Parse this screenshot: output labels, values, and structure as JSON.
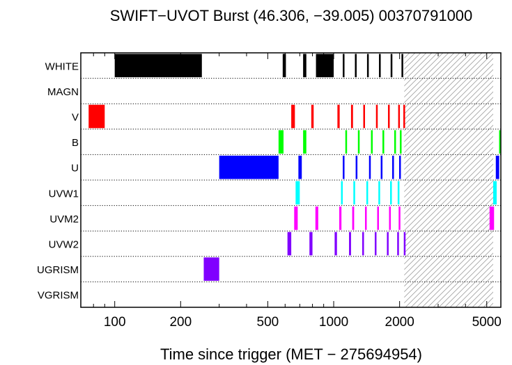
{
  "chart_data": {
    "type": "bar",
    "title": "SWIFT−UVOT Burst (46.306, −39.005) 00370791000",
    "xlabel": "Time since trigger (MET − 275694954)",
    "ylabel": "",
    "x_scale": "log",
    "xlim": [
      70,
      5800
    ],
    "x_ticks": [
      100,
      200,
      500,
      1000,
      2000,
      5000
    ],
    "x_tick_labels": [
      "100",
      "200",
      "500",
      "1000",
      "2000",
      "5000"
    ],
    "hatched_region": [
      2100,
      5350
    ],
    "categories": [
      "WHITE",
      "MAGN",
      "V",
      "B",
      "U",
      "UVW1",
      "UVM2",
      "UVW2",
      "UGRISM",
      "VGRISM"
    ],
    "series": [
      {
        "category": "WHITE",
        "color": "#000000",
        "intervals": [
          [
            100,
            250
          ],
          [
            585,
            605
          ],
          [
            725,
            750
          ],
          [
            830,
            1000
          ],
          [
            1100,
            1115
          ],
          [
            1250,
            1265
          ],
          [
            1420,
            1435
          ],
          [
            1610,
            1625
          ],
          [
            1820,
            1835
          ],
          [
            2040,
            2055
          ]
        ]
      },
      {
        "category": "MAGN",
        "color": "#000000",
        "intervals": []
      },
      {
        "category": "V",
        "color": "#ff0000",
        "intervals": [
          [
            76,
            90
          ],
          [
            640,
            665
          ],
          [
            790,
            810
          ],
          [
            1040,
            1065
          ],
          [
            1200,
            1225
          ],
          [
            1365,
            1390
          ],
          [
            1560,
            1585
          ],
          [
            1770,
            1795
          ],
          [
            1970,
            1995
          ],
          [
            2080,
            2100
          ]
        ]
      },
      {
        "category": "B",
        "color": "#00ff00",
        "intervals": [
          [
            560,
            590
          ],
          [
            725,
            750
          ],
          [
            1130,
            1150
          ],
          [
            1290,
            1310
          ],
          [
            1480,
            1500
          ],
          [
            1670,
            1690
          ],
          [
            1890,
            1905
          ],
          [
            2005,
            2030
          ],
          [
            5800,
            5850
          ]
        ]
      },
      {
        "category": "U",
        "color": "#0000ff",
        "intervals": [
          [
            300,
            560
          ],
          [
            690,
            715
          ],
          [
            1100,
            1120
          ],
          [
            1260,
            1280
          ],
          [
            1450,
            1470
          ],
          [
            1640,
            1660
          ],
          [
            1850,
            1865
          ],
          [
            1990,
            2010
          ],
          [
            5500,
            5700
          ]
        ]
      },
      {
        "category": "UVW1",
        "color": "#00ffff",
        "intervals": [
          [
            670,
            700
          ],
          [
            1080,
            1100
          ],
          [
            1230,
            1250
          ],
          [
            1410,
            1430
          ],
          [
            1600,
            1620
          ],
          [
            1810,
            1830
          ],
          [
            1960,
            1980
          ],
          [
            5350,
            5550
          ]
        ]
      },
      {
        "category": "UVM2",
        "color": "#ff00ff",
        "intervals": [
          [
            660,
            685
          ],
          [
            825,
            850
          ],
          [
            1060,
            1085
          ],
          [
            1215,
            1240
          ],
          [
            1390,
            1415
          ],
          [
            1580,
            1605
          ],
          [
            1790,
            1815
          ],
          [
            1980,
            2005
          ],
          [
            5150,
            5400
          ]
        ]
      },
      {
        "category": "UVW2",
        "color": "#8000ff",
        "intervals": [
          [
            615,
            640
          ],
          [
            775,
            800
          ],
          [
            1010,
            1035
          ],
          [
            1175,
            1200
          ],
          [
            1350,
            1375
          ],
          [
            1540,
            1565
          ],
          [
            1750,
            1775
          ],
          [
            1950,
            1975
          ],
          [
            2090,
            2110
          ]
        ]
      },
      {
        "category": "UGRISM",
        "color": "#8000ff",
        "intervals": [
          [
            255,
            300
          ]
        ]
      },
      {
        "category": "VGRISM",
        "color": "#000000",
        "intervals": []
      }
    ]
  }
}
